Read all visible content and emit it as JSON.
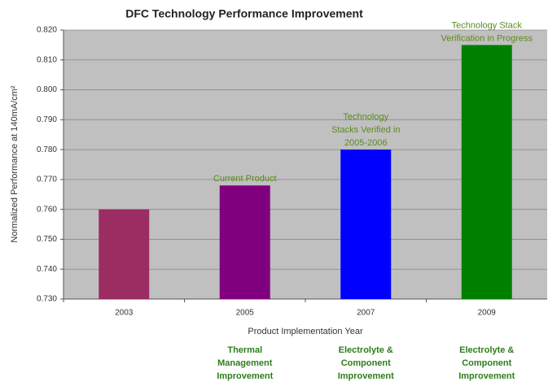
{
  "chart_data": {
    "type": "bar",
    "title": "DFC Technology Performance Improvement",
    "y_label": "Normalized Performance at 140mA/cm²",
    "x_label": "Product Implementation Year",
    "categories": [
      "2003",
      "2005",
      "2007",
      "2009"
    ],
    "values": [
      0.76,
      0.768,
      0.78,
      0.815
    ],
    "colors": [
      "#9b2d62",
      "#800080",
      "#0000ff",
      "#008000"
    ],
    "plot_background": "#c0c0c0",
    "grid": true,
    "ylim": [
      0.73,
      0.82
    ],
    "yticks": [
      {
        "value": 0.73,
        "label": "0.730"
      },
      {
        "value": 0.74,
        "label": "0.740"
      },
      {
        "value": 0.75,
        "label": "0.750"
      },
      {
        "value": 0.76,
        "label": "0.760"
      },
      {
        "value": 0.77,
        "label": "0.770"
      },
      {
        "value": 0.78,
        "label": "0.780"
      },
      {
        "value": 0.79,
        "label": "0.790"
      },
      {
        "value": 0.8,
        "label": "0.800"
      },
      {
        "value": 0.81,
        "label": "0.810"
      },
      {
        "value": 0.82,
        "label": "0.820"
      }
    ],
    "annotations": [
      {
        "category": "2005",
        "lines": [
          "Current Product"
        ]
      },
      {
        "category": "2007",
        "lines": [
          "Technology",
          "Stacks Verified in",
          "2005-2006"
        ]
      },
      {
        "category": "2009",
        "lines": [
          "Technology Stack",
          "Verification in Progress"
        ]
      }
    ],
    "notes": [
      {
        "category": "2005",
        "lines": [
          "Thermal",
          "Management",
          "Improvement"
        ]
      },
      {
        "category": "2007",
        "lines": [
          "Electrolyte &",
          "Component",
          "Improvement"
        ]
      },
      {
        "category": "2009",
        "lines": [
          "Electrolyte &",
          "Component",
          "Improvement"
        ]
      }
    ]
  }
}
